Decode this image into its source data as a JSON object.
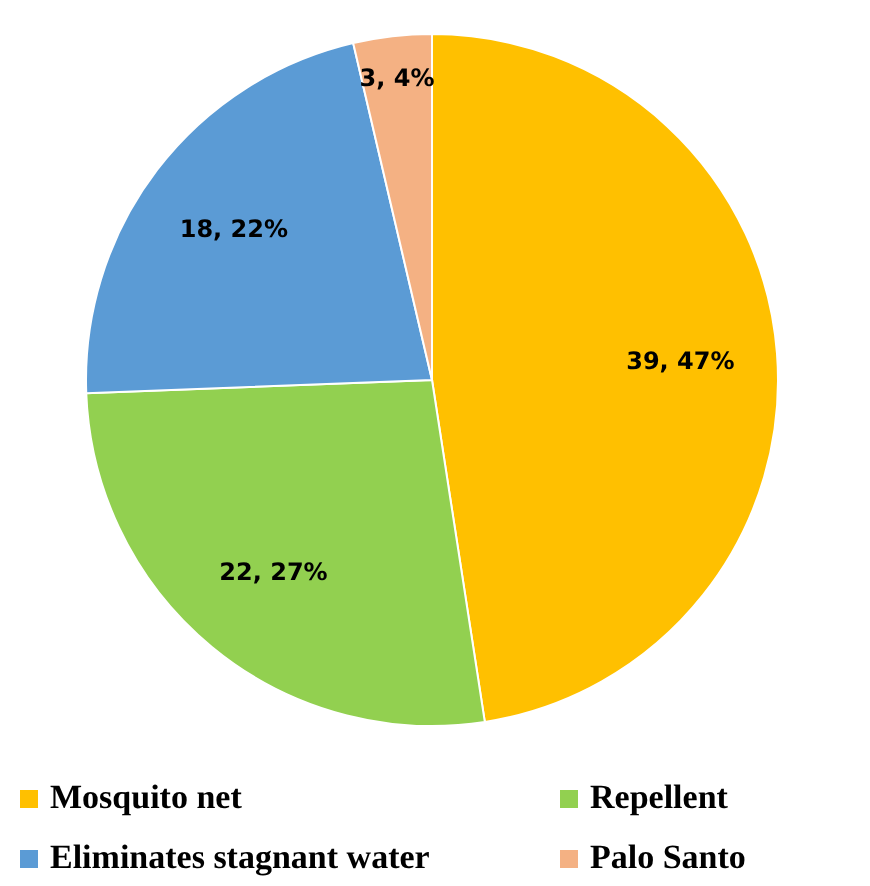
{
  "chart_data": {
    "type": "pie",
    "categories": [
      "Mosquito net",
      "Repellent",
      "Eliminates stagnant water",
      "Palo Santo"
    ],
    "values": [
      39,
      22,
      18,
      3
    ],
    "colors": [
      "#ffc000",
      "#92d050",
      "#5b9bd5",
      "#f4b183"
    ],
    "value_labels": [
      "39, 47%",
      "22, 27%",
      "18, 22%",
      "3, 4%"
    ],
    "legend": "bottom"
  }
}
